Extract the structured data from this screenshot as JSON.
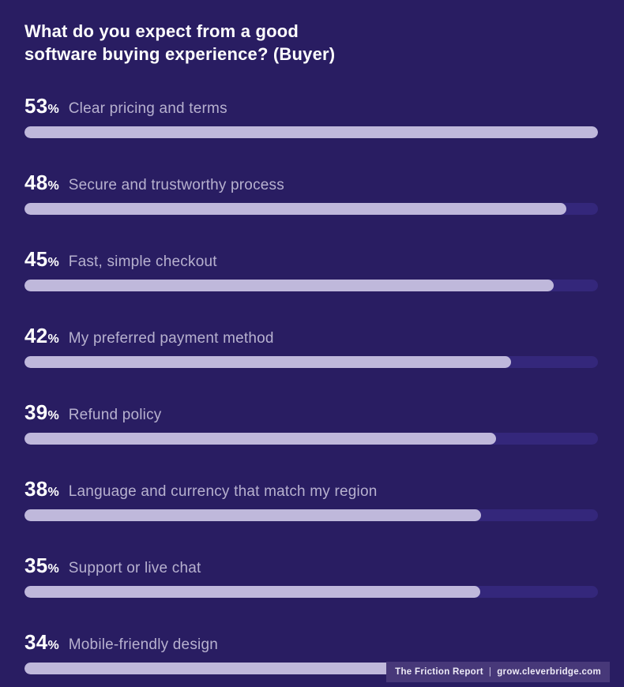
{
  "page": {
    "background": "#291D62",
    "accent_fill": "#BFB8DB",
    "accent_track": "#34277B"
  },
  "title": {
    "line1": "What do you expect from a good",
    "line2": "software buying experience? (Buyer)"
  },
  "chart_data": {
    "type": "bar",
    "orientation": "horizontal",
    "title": "What do you expect from a good software buying experience? (Buyer)",
    "categories": [
      "Clear pricing and terms",
      "Secure and trustworthy process",
      "Fast, simple checkout",
      "My preferred payment method",
      "Refund policy",
      "Language and currency that match my region",
      "Support or live chat",
      "Mobile-friendly design"
    ],
    "values": [
      53,
      48,
      45,
      42,
      39,
      38,
      35,
      34
    ],
    "unit": "%",
    "value_label_position": "above-bar-left",
    "bar_fill_fraction_of_track": [
      1.0,
      0.945,
      0.923,
      0.848,
      0.822,
      0.796,
      0.795,
      0.722
    ],
    "xlabel": "",
    "ylabel": "",
    "grid": false,
    "legend": false,
    "colors": {
      "bar_fill": "#BFB8DB",
      "bar_track": "#34277B",
      "value_text": "#FFFFFF",
      "category_text": "#B7B1CF",
      "background": "#291D62"
    }
  },
  "rows": [
    {
      "value": "53",
      "unit": "%",
      "label": "Clear pricing and terms",
      "fill_width": "100%"
    },
    {
      "value": "48",
      "unit": "%",
      "label": "Secure and trustworthy process",
      "fill_width": "94.5%"
    },
    {
      "value": "45",
      "unit": "%",
      "label": "Fast, simple checkout",
      "fill_width": "92.3%"
    },
    {
      "value": "42",
      "unit": "%",
      "label": "My preferred payment method",
      "fill_width": "84.8%"
    },
    {
      "value": "39",
      "unit": "%",
      "label": "Refund policy",
      "fill_width": "82.2%"
    },
    {
      "value": "38",
      "unit": "%",
      "label": "Language and currency that match my region",
      "fill_width": "79.6%"
    },
    {
      "value": "35",
      "unit": "%",
      "label": "Support or live chat",
      "fill_width": "79.5%"
    },
    {
      "value": "34",
      "unit": "%",
      "label": "Mobile-friendly design",
      "fill_width": "72.2%"
    }
  ],
  "footer": {
    "report": "The Friction Report",
    "separator": "|",
    "site": "grow.cleverbridge.com"
  }
}
